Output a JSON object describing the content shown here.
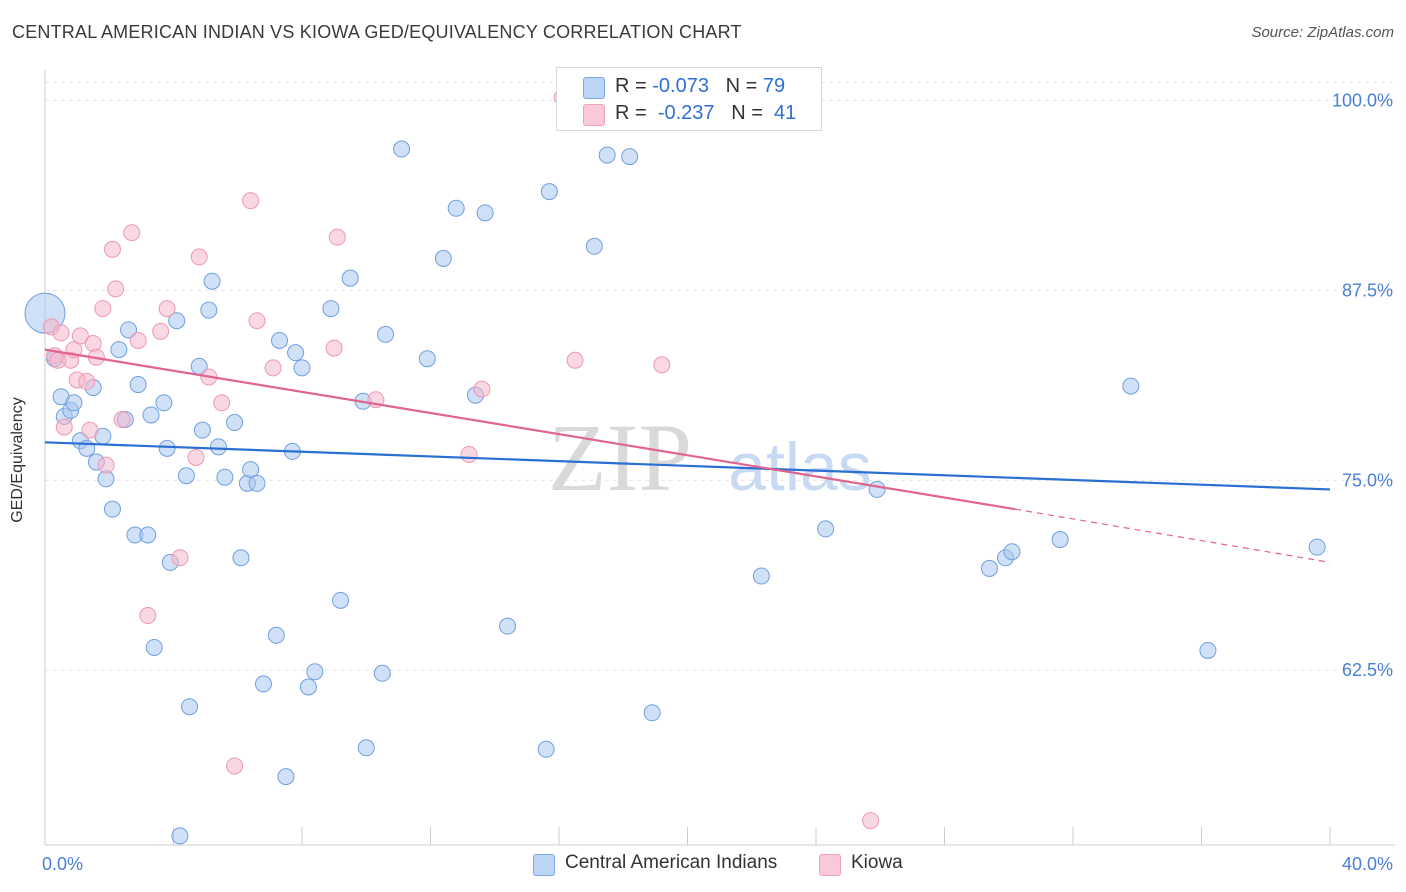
{
  "header": {
    "title": "CENTRAL AMERICAN INDIAN VS KIOWA GED/EQUIVALENCY CORRELATION CHART",
    "source": "Source: ZipAtlas.com"
  },
  "legend": {
    "rows": [
      {
        "r_label": "R =",
        "r_value": "-0.073",
        "n_label": "N =",
        "n_value": "79",
        "color": "#a9c8f0"
      },
      {
        "r_label": "R =",
        "r_value": "-0.237",
        "n_label": "N =",
        "n_value": "41",
        "color": "#f6b8cc"
      }
    ]
  },
  "bottom_legend": [
    {
      "label": "Central American Indians",
      "color": "#a9c8f0"
    },
    {
      "label": "Kiowa",
      "color": "#f6b8cc"
    }
  ],
  "watermark": {
    "zip": "ZIP",
    "atlas": "atlas"
  },
  "chart_data": {
    "type": "scatter",
    "title": "CENTRAL AMERICAN INDIAN VS KIOWA GED/EQUIVALENCY CORRELATION CHART",
    "xlabel": "",
    "ylabel": "GED/Equivalency",
    "xlim": [
      0,
      40
    ],
    "ylim": [
      51,
      102
    ],
    "x_tick_labels": [
      {
        "value": 0,
        "label": "0.0%"
      },
      {
        "value": 40,
        "label": "40.0%"
      }
    ],
    "y_tick_labels": [
      {
        "value": 100,
        "label": "100.0%"
      },
      {
        "value": 87.5,
        "label": "87.5%"
      },
      {
        "value": 75,
        "label": "75.0%"
      },
      {
        "value": 62.5,
        "label": "62.5%"
      }
    ],
    "grid": true,
    "series": [
      {
        "name": "Central American Indians",
        "color": "#6f9fe0",
        "fill": "#a9c8f0",
        "trend": {
          "x": [
            0,
            40
          ],
          "y": [
            77.5,
            74.4
          ],
          "color": "#2a6fd1"
        },
        "points": [
          {
            "x": 0.0,
            "y": 86.0,
            "big": true
          },
          {
            "x": 0.3,
            "y": 83.0
          },
          {
            "x": 0.5,
            "y": 80.5
          },
          {
            "x": 0.6,
            "y": 79.2
          },
          {
            "x": 0.8,
            "y": 79.6
          },
          {
            "x": 0.9,
            "y": 80.1
          },
          {
            "x": 1.1,
            "y": 77.6
          },
          {
            "x": 1.3,
            "y": 77.1
          },
          {
            "x": 1.5,
            "y": 81.1
          },
          {
            "x": 1.6,
            "y": 76.2
          },
          {
            "x": 1.8,
            "y": 77.9
          },
          {
            "x": 1.9,
            "y": 75.1
          },
          {
            "x": 2.1,
            "y": 73.1
          },
          {
            "x": 2.3,
            "y": 83.6
          },
          {
            "x": 2.5,
            "y": 79.0
          },
          {
            "x": 2.6,
            "y": 84.9
          },
          {
            "x": 2.8,
            "y": 71.4
          },
          {
            "x": 2.9,
            "y": 81.3
          },
          {
            "x": 3.2,
            "y": 71.4
          },
          {
            "x": 3.3,
            "y": 79.3
          },
          {
            "x": 3.4,
            "y": 64.0
          },
          {
            "x": 3.7,
            "y": 80.1
          },
          {
            "x": 3.8,
            "y": 77.1
          },
          {
            "x": 3.9,
            "y": 69.6
          },
          {
            "x": 4.1,
            "y": 85.5
          },
          {
            "x": 4.2,
            "y": 51.6
          },
          {
            "x": 4.4,
            "y": 75.3
          },
          {
            "x": 4.5,
            "y": 60.1
          },
          {
            "x": 4.8,
            "y": 82.5
          },
          {
            "x": 4.9,
            "y": 78.3
          },
          {
            "x": 5.1,
            "y": 86.2
          },
          {
            "x": 5.2,
            "y": 88.1
          },
          {
            "x": 5.4,
            "y": 77.2
          },
          {
            "x": 5.6,
            "y": 75.2
          },
          {
            "x": 5.9,
            "y": 78.8
          },
          {
            "x": 6.1,
            "y": 69.9
          },
          {
            "x": 6.3,
            "y": 74.8
          },
          {
            "x": 6.4,
            "y": 75.7
          },
          {
            "x": 6.6,
            "y": 74.8
          },
          {
            "x": 6.8,
            "y": 61.6
          },
          {
            "x": 7.2,
            "y": 64.8
          },
          {
            "x": 7.3,
            "y": 84.2
          },
          {
            "x": 7.5,
            "y": 55.5
          },
          {
            "x": 7.7,
            "y": 76.9
          },
          {
            "x": 7.8,
            "y": 83.4
          },
          {
            "x": 8.0,
            "y": 82.4
          },
          {
            "x": 8.2,
            "y": 61.4
          },
          {
            "x": 8.4,
            "y": 62.4
          },
          {
            "x": 8.9,
            "y": 86.3
          },
          {
            "x": 9.2,
            "y": 67.1
          },
          {
            "x": 9.5,
            "y": 88.3
          },
          {
            "x": 9.9,
            "y": 80.2
          },
          {
            "x": 10.0,
            "y": 57.4
          },
          {
            "x": 10.5,
            "y": 62.3
          },
          {
            "x": 10.6,
            "y": 84.6
          },
          {
            "x": 11.1,
            "y": 96.8
          },
          {
            "x": 11.9,
            "y": 83.0
          },
          {
            "x": 12.4,
            "y": 89.6
          },
          {
            "x": 12.8,
            "y": 92.9
          },
          {
            "x": 13.4,
            "y": 80.6
          },
          {
            "x": 13.7,
            "y": 92.6
          },
          {
            "x": 14.4,
            "y": 65.4
          },
          {
            "x": 15.6,
            "y": 57.3
          },
          {
            "x": 15.7,
            "y": 94.0
          },
          {
            "x": 17.1,
            "y": 90.4
          },
          {
            "x": 17.5,
            "y": 96.4
          },
          {
            "x": 18.2,
            "y": 96.3
          },
          {
            "x": 18.9,
            "y": 59.7
          },
          {
            "x": 22.3,
            "y": 68.7
          },
          {
            "x": 24.3,
            "y": 71.8
          },
          {
            "x": 25.9,
            "y": 74.4
          },
          {
            "x": 29.4,
            "y": 69.2
          },
          {
            "x": 29.9,
            "y": 69.9
          },
          {
            "x": 30.1,
            "y": 70.3
          },
          {
            "x": 31.6,
            "y": 71.1
          },
          {
            "x": 33.8,
            "y": 81.2
          },
          {
            "x": 36.2,
            "y": 63.8
          },
          {
            "x": 39.6,
            "y": 70.6
          },
          {
            "x": 22.3,
            "y": 100.1
          }
        ]
      },
      {
        "name": "Kiowa",
        "color": "#ee98b4",
        "fill": "#f6b8cc",
        "trend": {
          "x": [
            0,
            30.2
          ],
          "y": [
            83.6,
            73.1
          ],
          "dashed_to": [
            40,
            69.6
          ],
          "color": "#e0648e"
        },
        "points": [
          {
            "x": 0.2,
            "y": 85.1
          },
          {
            "x": 0.3,
            "y": 83.2
          },
          {
            "x": 0.5,
            "y": 84.7
          },
          {
            "x": 0.6,
            "y": 78.5
          },
          {
            "x": 0.8,
            "y": 82.9
          },
          {
            "x": 0.9,
            "y": 83.6
          },
          {
            "x": 1.0,
            "y": 81.6
          },
          {
            "x": 1.1,
            "y": 84.5
          },
          {
            "x": 1.3,
            "y": 81.5
          },
          {
            "x": 1.4,
            "y": 78.3
          },
          {
            "x": 1.5,
            "y": 84.0
          },
          {
            "x": 1.6,
            "y": 83.1
          },
          {
            "x": 1.8,
            "y": 86.3
          },
          {
            "x": 1.9,
            "y": 76.0
          },
          {
            "x": 2.1,
            "y": 90.2
          },
          {
            "x": 2.2,
            "y": 87.6
          },
          {
            "x": 2.4,
            "y": 79.0
          },
          {
            "x": 2.7,
            "y": 91.3
          },
          {
            "x": 2.9,
            "y": 84.2
          },
          {
            "x": 3.2,
            "y": 66.1
          },
          {
            "x": 3.6,
            "y": 84.8
          },
          {
            "x": 3.8,
            "y": 86.3
          },
          {
            "x": 4.2,
            "y": 69.9
          },
          {
            "x": 4.7,
            "y": 76.5
          },
          {
            "x": 4.8,
            "y": 89.7
          },
          {
            "x": 5.1,
            "y": 81.8
          },
          {
            "x": 5.5,
            "y": 80.1
          },
          {
            "x": 5.9,
            "y": 56.2
          },
          {
            "x": 6.4,
            "y": 93.4
          },
          {
            "x": 6.6,
            "y": 85.5
          },
          {
            "x": 7.1,
            "y": 82.4
          },
          {
            "x": 9.0,
            "y": 83.7
          },
          {
            "x": 9.1,
            "y": 91.0
          },
          {
            "x": 10.3,
            "y": 80.3
          },
          {
            "x": 13.2,
            "y": 76.7
          },
          {
            "x": 13.6,
            "y": 81.0
          },
          {
            "x": 16.1,
            "y": 100.2
          },
          {
            "x": 16.5,
            "y": 82.9
          },
          {
            "x": 19.2,
            "y": 82.6
          },
          {
            "x": 25.7,
            "y": 52.6
          },
          {
            "x": 0.4,
            "y": 82.9
          }
        ]
      }
    ]
  }
}
